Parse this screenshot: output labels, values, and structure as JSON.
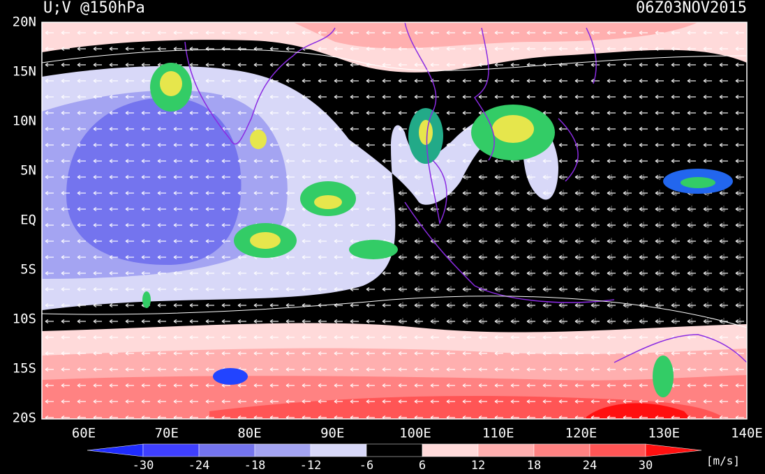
{
  "header": {
    "title": "U;V @150hPa",
    "time": "06Z03NOV2015"
  },
  "map": {
    "lat_labels": [
      "20N",
      "15N",
      "10N",
      "5N",
      "EQ",
      "5S",
      "10S",
      "15S",
      "20S"
    ],
    "lon_labels": [
      "60E",
      "70E",
      "80E",
      "90E",
      "100E",
      "110E",
      "120E",
      "130E",
      "140E"
    ]
  },
  "colorbar": {
    "levels": [
      -30,
      -24,
      -18,
      -12,
      -6,
      6,
      12,
      18,
      24,
      30
    ],
    "colors": [
      "#1f2cff",
      "#3f3fff",
      "#7474ee",
      "#a4a4f2",
      "#d8d8f8",
      "#000000",
      "#ffdada",
      "#ffafaf",
      "#ff8282",
      "#ff5555",
      "#ff1010"
    ],
    "units": "[m/s]"
  }
}
